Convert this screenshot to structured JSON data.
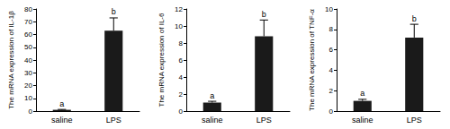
{
  "chart_data": [
    {
      "type": "bar",
      "y_label": "The mRNA expression of IL-1β",
      "categories": [
        "saline",
        "LPS"
      ],
      "values": [
        1,
        63
      ],
      "errors": [
        0.3,
        10
      ],
      "annotations": [
        "a",
        "b"
      ],
      "color": "#1a1a1a",
      "ylim": [
        0,
        80
      ],
      "yticks": [
        0,
        10,
        20,
        30,
        40,
        50,
        60,
        70,
        80
      ],
      "grid": false
    },
    {
      "type": "bar",
      "y_label": "The mRNA expression of IL-6",
      "categories": [
        "saline",
        "LPS"
      ],
      "values": [
        1,
        8.8
      ],
      "errors": [
        0.15,
        1.9
      ],
      "annotations": [
        "a",
        "b"
      ],
      "color": "#1a1a1a",
      "ylim": [
        0,
        12
      ],
      "yticks": [
        0,
        2,
        4,
        6,
        8,
        10,
        12
      ],
      "grid": false
    },
    {
      "type": "bar",
      "y_label": "The mRNA expression of TNF-α",
      "categories": [
        "saline",
        "LPS"
      ],
      "values": [
        1,
        7.2
      ],
      "errors": [
        0.15,
        1.3
      ],
      "annotations": [
        "a",
        "b"
      ],
      "color": "#1a1a1a",
      "ylim": [
        0,
        10
      ],
      "yticks": [
        0,
        2,
        4,
        6,
        8,
        10
      ],
      "grid": false
    }
  ]
}
